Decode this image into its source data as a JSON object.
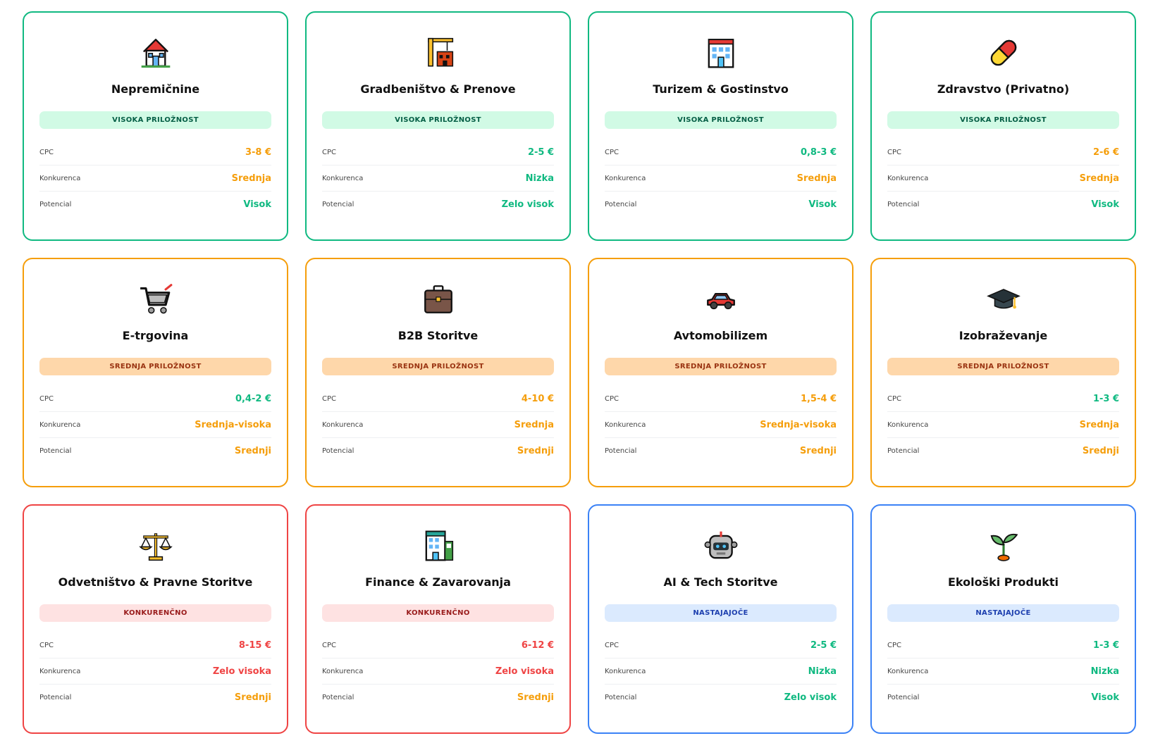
{
  "labels": {
    "cpc": "CPC",
    "competition": "Konkurenca",
    "potential": "Potencial"
  },
  "colors": {
    "high": "#10b981",
    "mid": "#f59e0b",
    "competitive": "#ef4444",
    "emerging": "#3b82f6",
    "value_green": "#10b981",
    "value_orange": "#f59e0b",
    "value_red": "#ef4444"
  },
  "cards": [
    {
      "icon": "house-icon",
      "title": "Nepremičnine",
      "tier": "high",
      "badge": "VISOKA PRILOŽNOST",
      "cpc": "3-8 €",
      "cpc_color": "orange",
      "competition": "Srednja",
      "competition_color": "orange",
      "potential": "Visok",
      "potential_color": "green"
    },
    {
      "icon": "construction-crane-icon",
      "title": "Gradbeništvo & Prenove",
      "tier": "high",
      "badge": "VISOKA PRILOŽNOST",
      "cpc": "2-5 €",
      "cpc_color": "green",
      "competition": "Nizka",
      "competition_color": "green",
      "potential": "Zelo visok",
      "potential_color": "green"
    },
    {
      "icon": "hotel-icon",
      "title": "Turizem & Gostinstvo",
      "tier": "high",
      "badge": "VISOKA PRILOŽNOST",
      "cpc": "0,8-3 €",
      "cpc_color": "green",
      "competition": "Srednja",
      "competition_color": "orange",
      "potential": "Visok",
      "potential_color": "green"
    },
    {
      "icon": "pill-icon",
      "title": "Zdravstvo (Privatno)",
      "tier": "high",
      "badge": "VISOKA PRILOŽNOST",
      "cpc": "2-6 €",
      "cpc_color": "orange",
      "competition": "Srednja",
      "competition_color": "orange",
      "potential": "Visok",
      "potential_color": "green"
    },
    {
      "icon": "shopping-cart-icon",
      "title": "E-trgovina",
      "tier": "mid",
      "badge": "SREDNJA PRILOŽNOST",
      "cpc": "0,4-2 €",
      "cpc_color": "green",
      "competition": "Srednja-visoka",
      "competition_color": "orange",
      "potential": "Srednji",
      "potential_color": "orange"
    },
    {
      "icon": "briefcase-icon",
      "title": "B2B Storitve",
      "tier": "mid",
      "badge": "SREDNJA PRILOŽNOST",
      "cpc": "4-10 €",
      "cpc_color": "orange",
      "competition": "Srednja",
      "competition_color": "orange",
      "potential": "Srednji",
      "potential_color": "orange"
    },
    {
      "icon": "car-icon",
      "title": "Avtomobilizem",
      "tier": "mid",
      "badge": "SREDNJA PRILOŽNOST",
      "cpc": "1,5-4 €",
      "cpc_color": "orange",
      "competition": "Srednja-visoka",
      "competition_color": "orange",
      "potential": "Srednji",
      "potential_color": "orange"
    },
    {
      "icon": "graduation-cap-icon",
      "title": "Izobraževanje",
      "tier": "mid",
      "badge": "SREDNJA PRILOŽNOST",
      "cpc": "1-3 €",
      "cpc_color": "green",
      "competition": "Srednja",
      "competition_color": "orange",
      "potential": "Srednji",
      "potential_color": "orange"
    },
    {
      "icon": "balance-scale-icon",
      "title": "Odvetništvo & Pravne Storitve",
      "tier": "comp",
      "badge": "KONKURENČNO",
      "cpc": "8-15 €",
      "cpc_color": "red",
      "competition": "Zelo visoka",
      "competition_color": "red",
      "potential": "Srednji",
      "potential_color": "orange"
    },
    {
      "icon": "bank-building-icon",
      "title": "Finance & Zavarovanja",
      "tier": "comp",
      "badge": "KONKURENČNO",
      "cpc": "6-12 €",
      "cpc_color": "red",
      "competition": "Zelo visoka",
      "competition_color": "red",
      "potential": "Srednji",
      "potential_color": "orange"
    },
    {
      "icon": "robot-icon",
      "title": "AI & Tech Storitve",
      "tier": "emerg",
      "badge": "NASTAJAJOČE",
      "cpc": "2-5 €",
      "cpc_color": "green",
      "competition": "Nizka",
      "competition_color": "green",
      "potential": "Zelo visok",
      "potential_color": "green"
    },
    {
      "icon": "seedling-icon",
      "title": "Ekološki Produkti",
      "tier": "emerg",
      "badge": "NASTAJAJOČE",
      "cpc": "1-3 €",
      "cpc_color": "green",
      "competition": "Nizka",
      "competition_color": "green",
      "potential": "Visok",
      "potential_color": "green"
    }
  ]
}
